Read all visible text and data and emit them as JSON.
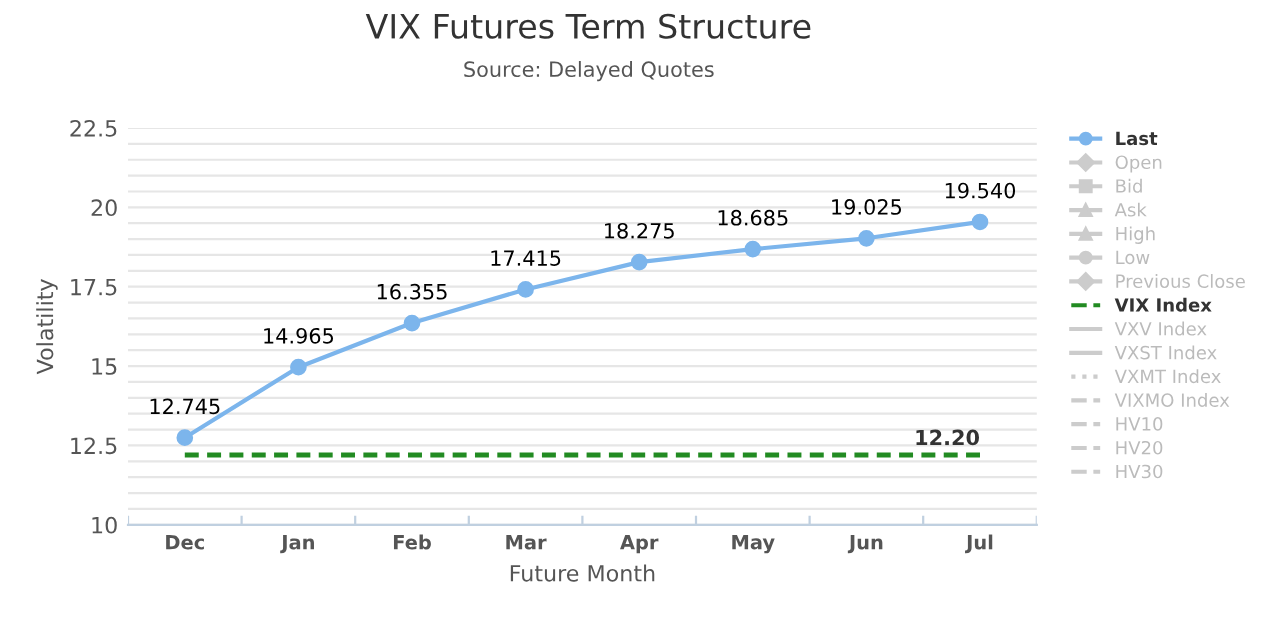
{
  "chart_data": {
    "type": "line",
    "title": "VIX Futures Term Structure",
    "subtitle": "Source: Delayed Quotes",
    "xlabel": "Future Month",
    "ylabel": "Volatility",
    "categories": [
      "Dec",
      "Jan",
      "Feb",
      "Mar",
      "Apr",
      "May",
      "Jun",
      "Jul"
    ],
    "ylim": [
      10,
      22.5
    ],
    "yticks": [
      10,
      {
        "value": 10.5,
        "label": null
      },
      {
        "value": 11,
        "label": null
      },
      {
        "value": 11.5,
        "label": null
      },
      {
        "value": 12,
        "label": null
      },
      12.5,
      {
        "value": 13,
        "label": null
      },
      {
        "value": 13.5,
        "label": null
      },
      {
        "value": 14,
        "label": null
      },
      {
        "value": 14.5,
        "label": null
      },
      15,
      {
        "value": 15.5,
        "label": null
      },
      {
        "value": 16,
        "label": null
      },
      {
        "value": 16.5,
        "label": null
      },
      {
        "value": 17,
        "label": null
      },
      17.5,
      {
        "value": 18,
        "label": null
      },
      {
        "value": 18.5,
        "label": null
      },
      {
        "value": 19,
        "label": null
      },
      {
        "value": 19.5,
        "label": null
      },
      20,
      {
        "value": 20.5,
        "label": null
      },
      {
        "value": 21,
        "label": null
      },
      {
        "value": 21.5,
        "label": null
      },
      {
        "value": 22,
        "label": null
      },
      22.5
    ],
    "grid": "y",
    "legend": "right",
    "series": [
      {
        "name": "Last",
        "color": "#7cb5ec",
        "marker": "circle",
        "line_style": "solid",
        "values": [
          12.745,
          14.965,
          16.355,
          17.415,
          18.275,
          18.685,
          19.025,
          19.54
        ],
        "value_labels": [
          "12.745",
          "14.965",
          "16.355",
          "17.415",
          "18.275",
          "18.685",
          "19.025",
          "19.540"
        ]
      },
      {
        "name": "Open",
        "color": "#cccccc",
        "marker": "diamond",
        "line_style": "solid",
        "values": [
          null,
          null,
          null,
          null,
          null,
          null,
          null,
          null
        ]
      },
      {
        "name": "Bid",
        "color": "#cccccc",
        "marker": "square",
        "line_style": "solid",
        "values": [
          null,
          null,
          null,
          null,
          null,
          null,
          null,
          null
        ]
      },
      {
        "name": "Ask",
        "color": "#cccccc",
        "marker": "triangle",
        "line_style": "solid",
        "values": [
          null,
          null,
          null,
          null,
          null,
          null,
          null,
          null
        ]
      },
      {
        "name": "High",
        "color": "#cccccc",
        "marker": "triangle",
        "line_style": "solid",
        "values": [
          null,
          null,
          null,
          null,
          null,
          null,
          null,
          null
        ]
      },
      {
        "name": "Low",
        "color": "#cccccc",
        "marker": "circle",
        "line_style": "solid",
        "values": [
          null,
          null,
          null,
          null,
          null,
          null,
          null,
          null
        ]
      },
      {
        "name": "Previous Close",
        "color": "#cccccc",
        "marker": "diamond",
        "line_style": "solid",
        "values": [
          null,
          null,
          null,
          null,
          null,
          null,
          null,
          null
        ]
      },
      {
        "name": "VIX Index",
        "color": "#228b22",
        "marker": "none",
        "line_style": "dashed",
        "values": [
          12.2,
          12.2,
          12.2,
          12.2,
          12.2,
          12.2,
          12.2,
          12.2
        ],
        "value_labels": [
          null,
          null,
          null,
          null,
          null,
          null,
          null,
          "12.20"
        ]
      },
      {
        "name": "VXV Index",
        "color": "#cccccc",
        "marker": "none",
        "line_style": "solid",
        "values": [
          null,
          null,
          null,
          null,
          null,
          null,
          null,
          null
        ]
      },
      {
        "name": "VXST Index",
        "color": "#cccccc",
        "marker": "none",
        "line_style": "solid",
        "values": [
          null,
          null,
          null,
          null,
          null,
          null,
          null,
          null
        ]
      },
      {
        "name": "VXMT Index",
        "color": "#cccccc",
        "marker": "none",
        "line_style": "dotted",
        "values": [
          null,
          null,
          null,
          null,
          null,
          null,
          null,
          null
        ]
      },
      {
        "name": "VIXMO Index",
        "color": "#cccccc",
        "marker": "none",
        "line_style": "dashed",
        "values": [
          null,
          null,
          null,
          null,
          null,
          null,
          null,
          null
        ]
      },
      {
        "name": "HV10",
        "color": "#cccccc",
        "marker": "none",
        "line_style": "dashed",
        "values": [
          null,
          null,
          null,
          null,
          null,
          null,
          null,
          null
        ]
      },
      {
        "name": "HV20",
        "color": "#cccccc",
        "marker": "none",
        "line_style": "dashed",
        "values": [
          null,
          null,
          null,
          null,
          null,
          null,
          null,
          null
        ]
      },
      {
        "name": "HV30",
        "color": "#cccccc",
        "marker": "none",
        "line_style": "dashed",
        "values": [
          null,
          null,
          null,
          null,
          null,
          null,
          null,
          null
        ]
      }
    ]
  }
}
